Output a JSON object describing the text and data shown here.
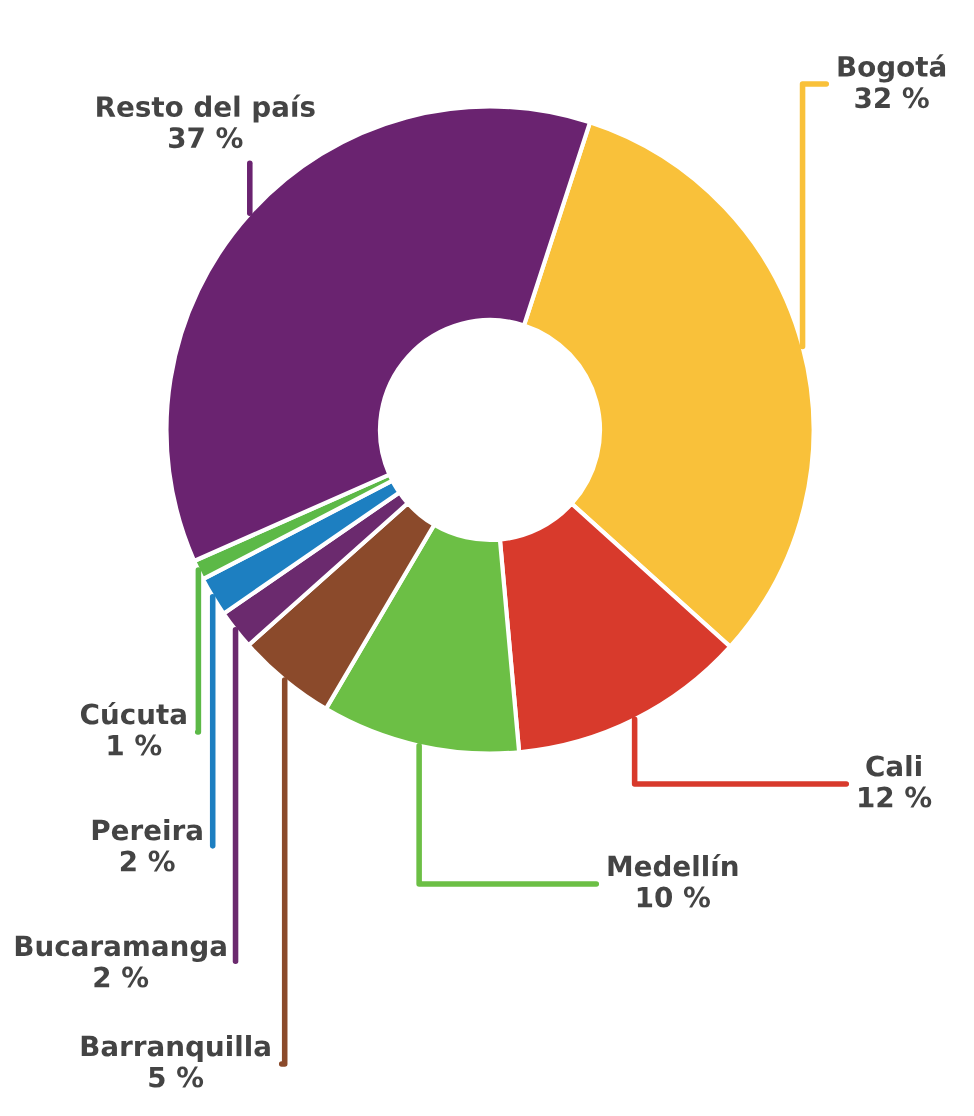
{
  "chart_data": {
    "type": "donut",
    "categories": [
      "Bogotá",
      "Cali",
      "Medellín",
      "Barranquilla",
      "Bucaramanga",
      "Pereira",
      "Cúcuta",
      "Resto del país"
    ],
    "values": [
      32,
      12,
      10,
      5,
      2,
      2,
      1,
      37
    ],
    "value_labels": [
      "32 %",
      "12 %",
      "10 %",
      "5 %",
      "2 %",
      "2 %",
      "1 %",
      "37 %"
    ],
    "colors": [
      "#f9c13a",
      "#d83a2c",
      "#6cbf45",
      "#8b4a2b",
      "#6b2a6e",
      "#1d7fc1",
      "#5cb947",
      "#6a2370"
    ]
  }
}
